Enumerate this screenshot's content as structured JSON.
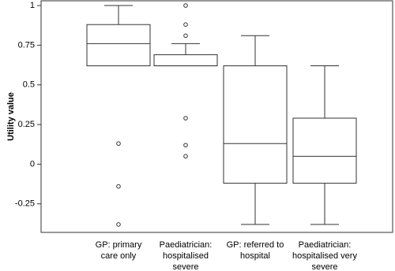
{
  "chart_data": {
    "type": "box",
    "y_label": "Utility value",
    "categories": [
      [
        "GP: primary",
        "care only"
      ],
      [
        "Paediatrician:",
        "hospitalised",
        "severe"
      ],
      [
        "GP: referred to",
        "hospital"
      ],
      [
        "Paediatrician:",
        "hospitalised very",
        "severe"
      ]
    ],
    "boxes": [
      {
        "whisker_low": 0.62,
        "q1": 0.62,
        "median": 0.76,
        "q3": 0.88,
        "whisker_high": 1.0,
        "outliers": [
          0.13,
          -0.14,
          -0.38
        ]
      },
      {
        "whisker_low": 0.62,
        "q1": 0.62,
        "median": 0.62,
        "q3": 0.69,
        "whisker_high": 0.76,
        "outliers": [
          1.0,
          0.88,
          0.81,
          0.29,
          0.12,
          0.05
        ]
      },
      {
        "whisker_low": -0.38,
        "q1": -0.12,
        "median": 0.13,
        "q3": 0.62,
        "whisker_high": 0.81,
        "outliers": []
      },
      {
        "whisker_low": -0.38,
        "q1": -0.12,
        "median": 0.05,
        "q3": 0.29,
        "whisker_high": 0.62,
        "outliers": []
      }
    ],
    "color": "#333333",
    "ylim": [
      -0.43,
      1.03
    ],
    "yticks": [
      -0.25,
      0,
      0.25,
      0.5,
      0.75,
      1
    ]
  }
}
